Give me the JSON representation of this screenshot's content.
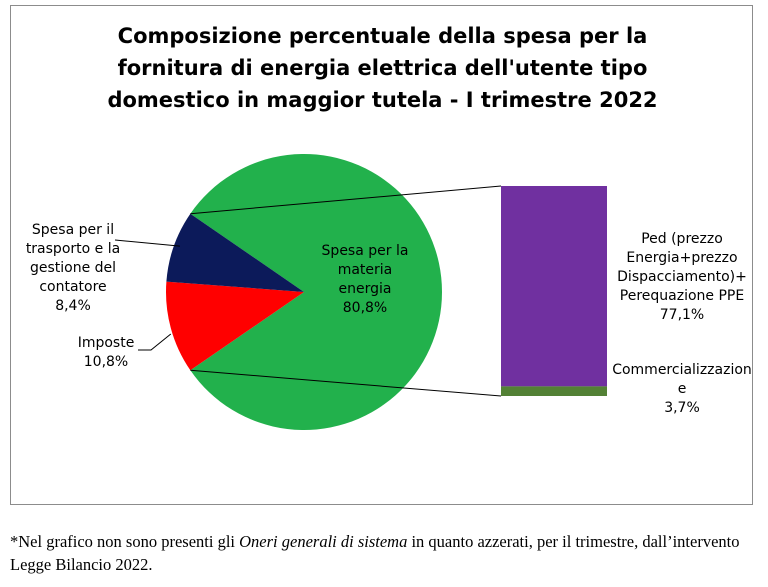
{
  "chart_data": {
    "type": "pie",
    "title_lines": [
      "Composizione percentuale della spesa per la",
      "fornitura di energia elettrica dell'utente tipo",
      "domestico in maggior tutela - I trimestre 2022"
    ],
    "pie": {
      "slices": [
        {
          "name": "Spesa per la materia energia",
          "label_lines": [
            "Spesa per la",
            "materia",
            "energia"
          ],
          "value": 80.8,
          "value_label": "80,8%",
          "color": "#22b14c"
        },
        {
          "name": "Imposte",
          "label_lines": [
            "Imposte"
          ],
          "value": 10.8,
          "value_label": "10,8%",
          "color": "#ff0000"
        },
        {
          "name": "Spesa per il trasporto e la gestione del contatore",
          "label_lines": [
            "Spesa per il",
            "trasporto e la",
            "gestione del",
            "contatore"
          ],
          "value": 8.4,
          "value_label": "8,4%",
          "color": "#0c1a5a"
        }
      ]
    },
    "bar": {
      "breakdown_of": "Spesa per la materia energia",
      "segments": [
        {
          "name": "Ped (prezzo Energia+prezzo Dispacciamento)+ Perequazione PPE",
          "label_lines": [
            "Ped (prezzo",
            "Energia+prezzo",
            "Dispacciamento)+",
            "Perequazione PPE"
          ],
          "value": 77.1,
          "value_label": "77,1%",
          "color": "#7030a0"
        },
        {
          "name": "Commercializzazione",
          "label_lines": [
            "Commercializzazion",
            "e"
          ],
          "value": 3.7,
          "value_label": "3,7%",
          "color": "#538135"
        }
      ]
    }
  },
  "footnote": {
    "prefix": "*Nel grafico non sono presenti gli ",
    "italic": "Oneri generali di sistema",
    "suffix": " in quanto azzerati, per il trimestre, dall’intervento Legge Bilancio 2022."
  }
}
